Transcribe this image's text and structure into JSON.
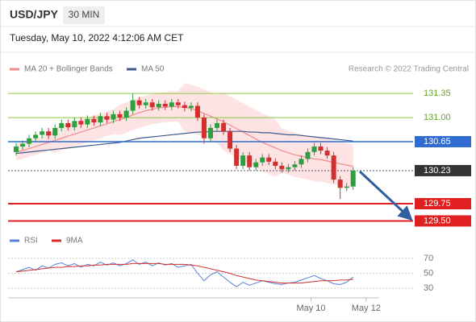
{
  "header": {
    "symbol": "USD/JPY",
    "timeframe": "30 MIN",
    "datetime": "Tuesday, May 10, 2022 4:12:06 AM CET"
  },
  "chart_data": [
    {
      "type": "candlestick",
      "credit": "Research © 2022 Trading Central",
      "xlim": [
        -1,
        61
      ],
      "ylim": [
        129.4,
        131.55
      ],
      "candles": {
        "up_color": "#2e9e3e",
        "down_color": "#d32f2f",
        "open": [
          130.5,
          130.58,
          130.62,
          130.7,
          130.75,
          130.8,
          130.74,
          130.85,
          130.92,
          130.86,
          130.95,
          130.9,
          130.98,
          130.93,
          131.02,
          130.97,
          131.05,
          131.0,
          131.1,
          131.25,
          131.18,
          131.22,
          131.15,
          131.2,
          131.16,
          131.22,
          131.18,
          131.14,
          131.17,
          131.0,
          130.7,
          130.85,
          130.92,
          130.8,
          130.55,
          130.3,
          130.45,
          130.28,
          130.35,
          130.42,
          130.36,
          130.3,
          130.25,
          130.28,
          130.32,
          130.4,
          130.5,
          130.58,
          130.52,
          130.45,
          130.1,
          129.98,
          130.0
        ],
        "close": [
          130.58,
          130.62,
          130.7,
          130.75,
          130.8,
          130.74,
          130.85,
          130.92,
          130.86,
          130.95,
          130.9,
          130.98,
          130.93,
          131.02,
          130.97,
          131.05,
          131.0,
          131.1,
          131.25,
          131.18,
          131.22,
          131.15,
          131.2,
          131.16,
          131.22,
          131.18,
          131.14,
          131.17,
          131.0,
          130.7,
          130.85,
          130.92,
          130.8,
          130.55,
          130.3,
          130.45,
          130.28,
          130.35,
          130.42,
          130.36,
          130.3,
          130.25,
          130.28,
          130.32,
          130.4,
          130.5,
          130.58,
          130.52,
          130.45,
          130.1,
          129.98,
          130.0,
          130.23
        ],
        "high": [
          130.63,
          130.67,
          130.75,
          130.8,
          130.85,
          130.85,
          130.9,
          130.97,
          130.97,
          131.0,
          131.0,
          131.03,
          131.03,
          131.07,
          131.07,
          131.1,
          131.1,
          131.15,
          131.35,
          131.3,
          131.27,
          131.27,
          131.25,
          131.25,
          131.27,
          131.27,
          131.23,
          131.22,
          131.22,
          131.05,
          130.9,
          130.97,
          130.97,
          130.85,
          130.6,
          130.5,
          130.5,
          130.4,
          130.47,
          130.47,
          130.41,
          130.35,
          130.33,
          130.37,
          130.45,
          130.55,
          130.63,
          130.63,
          130.57,
          130.5,
          130.15,
          130.05,
          130.28
        ],
        "low": [
          130.45,
          130.53,
          130.57,
          130.65,
          130.7,
          130.69,
          130.69,
          130.8,
          130.81,
          130.81,
          130.85,
          130.85,
          130.88,
          130.88,
          130.92,
          130.92,
          130.95,
          130.95,
          131.05,
          131.13,
          131.13,
          131.1,
          131.1,
          131.11,
          131.11,
          131.13,
          131.09,
          131.09,
          130.95,
          130.62,
          130.65,
          130.8,
          130.75,
          130.5,
          130.25,
          130.25,
          130.23,
          130.23,
          130.3,
          130.31,
          130.25,
          130.2,
          130.2,
          130.23,
          130.27,
          130.35,
          130.45,
          130.47,
          130.4,
          130.05,
          129.82,
          129.93,
          129.95
        ]
      },
      "series": [
        {
          "name": "MA 20 + Bollinger Bands",
          "color": "#f08c8c",
          "band_color": "#fde3e3",
          "values": [
            130.5,
            130.52,
            130.55,
            130.58,
            130.61,
            130.64,
            130.67,
            130.7,
            130.73,
            130.76,
            130.79,
            130.82,
            130.85,
            130.88,
            130.91,
            130.94,
            130.97,
            131.0,
            131.04,
            131.07,
            131.1,
            131.12,
            131.14,
            131.15,
            131.16,
            131.16,
            131.15,
            131.13,
            131.1,
            131.06,
            131.02,
            130.98,
            130.94,
            130.89,
            130.84,
            130.79,
            130.74,
            130.69,
            130.64,
            130.6,
            130.56,
            130.52,
            130.49,
            130.46,
            130.44,
            130.42,
            130.4,
            130.39,
            130.37,
            130.35,
            130.33,
            130.31,
            130.29
          ],
          "upper": [
            130.62,
            130.64,
            130.67,
            130.7,
            130.73,
            130.76,
            130.85,
            130.88,
            130.91,
            130.94,
            130.97,
            131.0,
            131.03,
            131.06,
            131.09,
            131.12,
            131.19,
            131.22,
            131.26,
            131.29,
            131.32,
            131.34,
            131.36,
            131.37,
            131.38,
            131.38,
            131.5,
            131.48,
            131.45,
            131.41,
            131.37,
            131.33,
            131.36,
            131.31,
            131.26,
            131.21,
            131.16,
            131.11,
            131.06,
            131.02,
            130.98,
            130.84,
            130.81,
            130.78,
            130.76,
            130.74,
            130.72,
            130.71,
            130.69,
            130.67,
            130.65,
            130.63,
            130.61
          ],
          "lower": [
            130.38,
            130.4,
            130.43,
            130.46,
            130.49,
            130.52,
            130.49,
            130.52,
            130.55,
            130.58,
            130.61,
            130.64,
            130.67,
            130.7,
            130.73,
            130.76,
            130.75,
            130.78,
            130.82,
            130.85,
            130.88,
            130.9,
            130.92,
            130.93,
            130.94,
            130.94,
            130.8,
            130.78,
            130.75,
            130.71,
            130.67,
            130.63,
            130.52,
            130.47,
            130.42,
            130.37,
            130.32,
            130.27,
            130.22,
            130.18,
            130.14,
            130.2,
            130.17,
            130.14,
            130.12,
            130.1,
            130.08,
            130.07,
            130.05,
            130.03,
            130.01,
            129.99,
            129.97
          ]
        },
        {
          "name": "MA 50",
          "color": "#3c5a8c",
          "values": [
            130.48,
            130.49,
            130.5,
            130.51,
            130.52,
            130.53,
            130.54,
            130.55,
            130.56,
            130.57,
            130.58,
            130.59,
            130.6,
            130.61,
            130.62,
            130.63,
            130.64,
            130.66,
            130.68,
            130.7,
            130.71,
            130.72,
            130.73,
            130.74,
            130.75,
            130.76,
            130.77,
            130.78,
            130.79,
            130.79,
            130.8,
            130.8,
            130.8,
            130.8,
            130.8,
            130.8,
            130.79,
            130.79,
            130.78,
            130.78,
            130.77,
            130.76,
            130.75,
            130.75,
            130.74,
            130.73,
            130.72,
            130.71,
            130.7,
            130.69,
            130.68,
            130.67,
            130.66
          ]
        }
      ],
      "levels": [
        {
          "value": 131.35,
          "label": "131.35",
          "color": "#8cc63f",
          "boxed": false,
          "width": 1,
          "dashed": false
        },
        {
          "value": 131.0,
          "label": "131.00",
          "color": "#8cc63f",
          "boxed": false,
          "width": 1,
          "dashed": false
        },
        {
          "value": 130.65,
          "label": "130.65",
          "color": "#2f6bd0",
          "boxed": true,
          "width": 1.5,
          "dashed": false
        },
        {
          "value": 130.23,
          "label": "130.23",
          "color": "#333333",
          "boxed": true,
          "width": 1,
          "dashed": true
        },
        {
          "value": 129.75,
          "label": "129.75",
          "color": "#e02020",
          "boxed": true,
          "width": 2,
          "dashed": false
        },
        {
          "value": 129.5,
          "label": "129.50",
          "color": "#e02020",
          "boxed": true,
          "width": 2,
          "dashed": false
        }
      ]
    },
    {
      "type": "line",
      "xlim": [
        -1,
        61
      ],
      "ylim": [
        15,
        85
      ],
      "yticks": [
        70,
        50,
        30
      ],
      "grid": true,
      "xticks": [
        {
          "value": 45.5,
          "label": "May 10"
        },
        {
          "value": 54,
          "label": "May 12"
        }
      ],
      "series": [
        {
          "name": "RSI",
          "color": "#5b7fd6",
          "values": [
            52,
            55,
            58,
            54,
            60,
            57,
            62,
            64,
            60,
            63,
            58,
            62,
            60,
            65,
            61,
            64,
            60,
            63,
            68,
            62,
            65,
            60,
            64,
            61,
            63,
            58,
            60,
            62,
            50,
            40,
            48,
            52,
            45,
            38,
            32,
            38,
            34,
            37,
            40,
            38,
            36,
            35,
            37,
            38,
            41,
            44,
            47,
            43,
            40,
            36,
            35,
            38,
            45
          ]
        },
        {
          "name": "9MA",
          "color": "#d32f2f",
          "values": [
            52,
            53,
            54,
            55,
            56,
            57,
            58,
            58,
            59,
            59,
            60,
            60,
            61,
            61,
            62,
            62,
            62,
            62,
            63,
            63,
            63,
            63,
            63,
            62,
            62,
            62,
            62,
            61,
            60,
            58,
            56,
            54,
            52,
            50,
            47,
            45,
            43,
            41,
            40,
            39,
            38,
            37,
            37,
            37,
            37,
            38,
            39,
            40,
            40,
            40,
            41,
            41,
            42
          ]
        }
      ]
    }
  ]
}
